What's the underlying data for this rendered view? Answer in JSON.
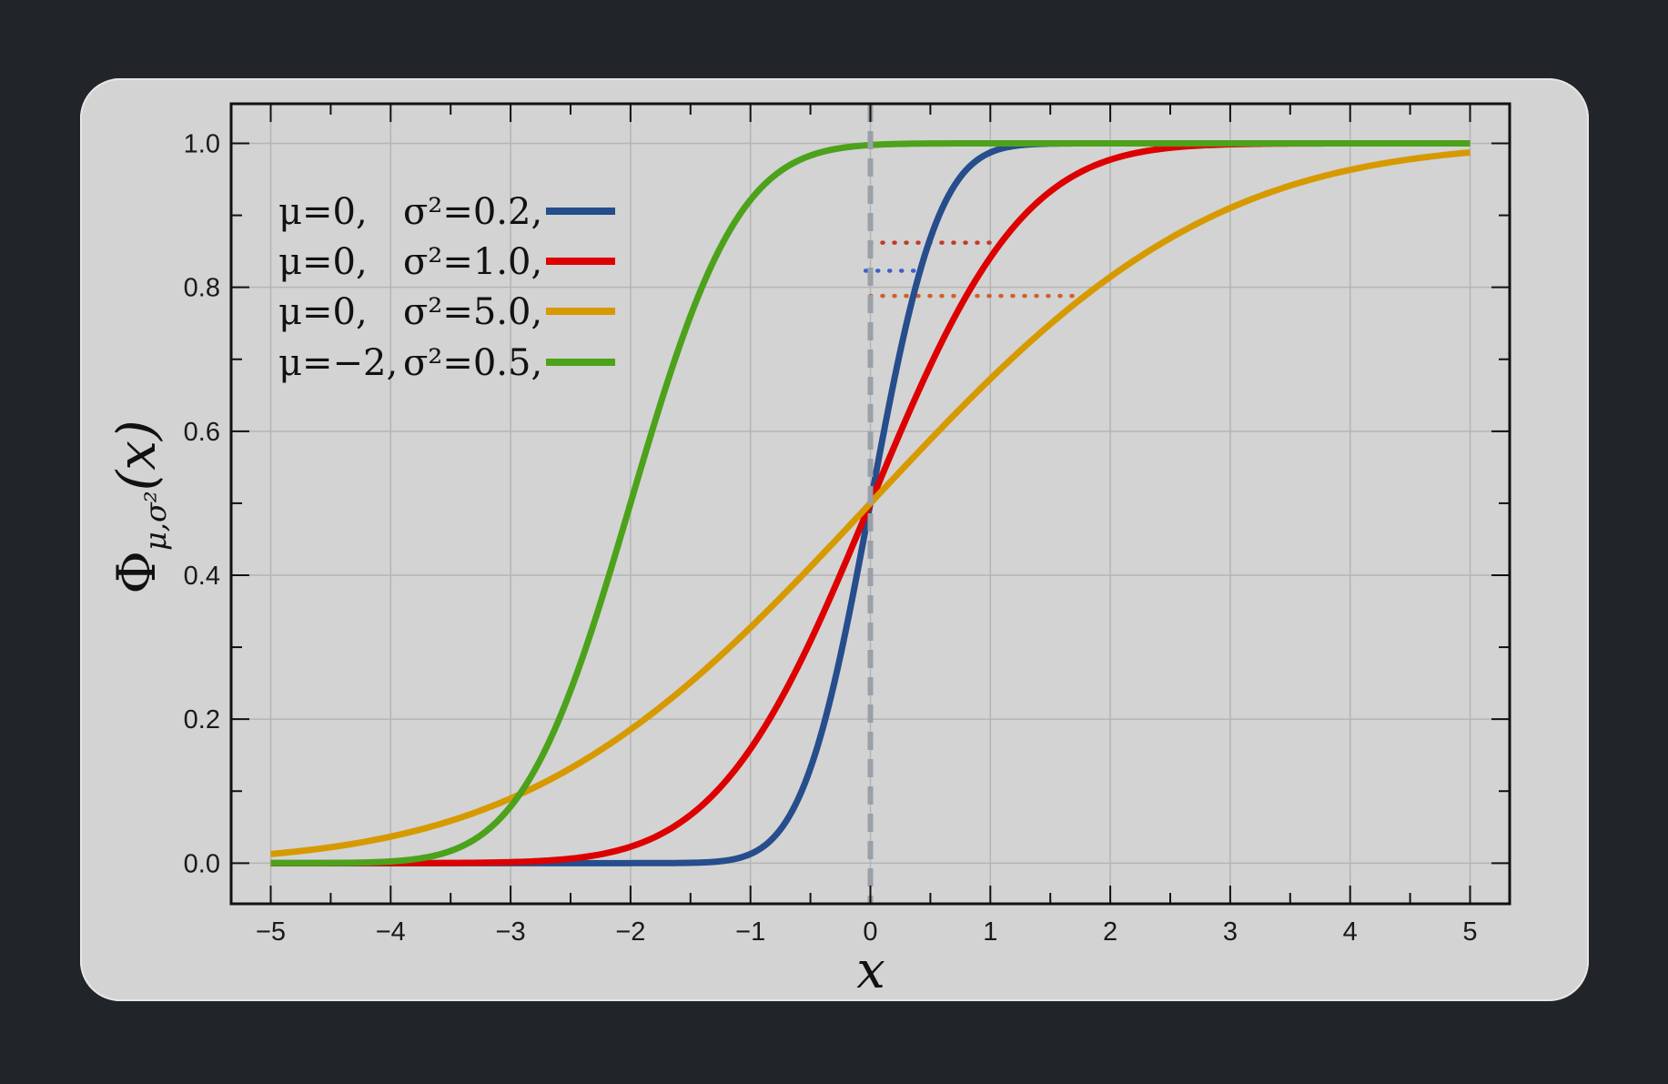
{
  "chart_data": {
    "type": "line",
    "xlabel": "x",
    "ylabel": "Φμ,σ²(x)",
    "ylabel_parts": {
      "main": "Φ",
      "sub": "μ,σ²",
      "arg": "(x)"
    },
    "xlim": [
      -5.33,
      5.33
    ],
    "ylim": [
      -0.0565,
      1.055
    ],
    "x_ticks": [
      -5,
      -4,
      -3,
      -2,
      -1,
      0,
      1,
      2,
      3,
      4,
      5
    ],
    "x_tick_labels": [
      "−5",
      "−4",
      "−3",
      "−2",
      "−1",
      "0",
      "1",
      "2",
      "3",
      "4",
      "5"
    ],
    "y_ticks": [
      0.0,
      0.2,
      0.4,
      0.6,
      0.8,
      1.0
    ],
    "y_tick_labels": [
      "0.0",
      "0.2",
      "0.4",
      "0.6",
      "0.8",
      "1.0"
    ],
    "grid": true,
    "legend_position": "top-left",
    "series": [
      {
        "name": "μ=0,   σ²=0.2,",
        "mu_label": "μ=0,",
        "var_label": "σ²=0.2,",
        "mu": 0,
        "variance": 0.2,
        "color": "#264d8c"
      },
      {
        "name": "μ=0,   σ²=1.0,",
        "mu_label": "μ=0,",
        "var_label": "σ²=1.0,",
        "mu": 0,
        "variance": 1.0,
        "color": "#dd0000"
      },
      {
        "name": "μ=0,   σ²=5.0,",
        "mu_label": "μ=0,",
        "var_label": "σ²=5.0,",
        "mu": 0,
        "variance": 5.0,
        "color": "#d69a00"
      },
      {
        "name": "μ=−2, σ²=0.5,",
        "mu_label": "μ=−2,",
        "var_label": "σ²=0.5,",
        "mu": -2,
        "variance": 0.5,
        "color": "#4ca21a"
      }
    ],
    "annotations": [
      {
        "type": "vertical-dashed",
        "x": 0,
        "color": "#9aa0a8"
      },
      {
        "type": "horizontal-dotted",
        "x_start": 0,
        "x_end": 1.02,
        "y": 0.862,
        "color": "#c03a2b"
      },
      {
        "type": "horizontal-dotted",
        "x_start": -0.04,
        "x_end": 0.45,
        "y": 0.823,
        "color": "#3a5fcd"
      },
      {
        "type": "horizontal-dotted",
        "x_start": 0,
        "x_end": 1.78,
        "y": 0.788,
        "color": "#d0602a"
      }
    ]
  }
}
